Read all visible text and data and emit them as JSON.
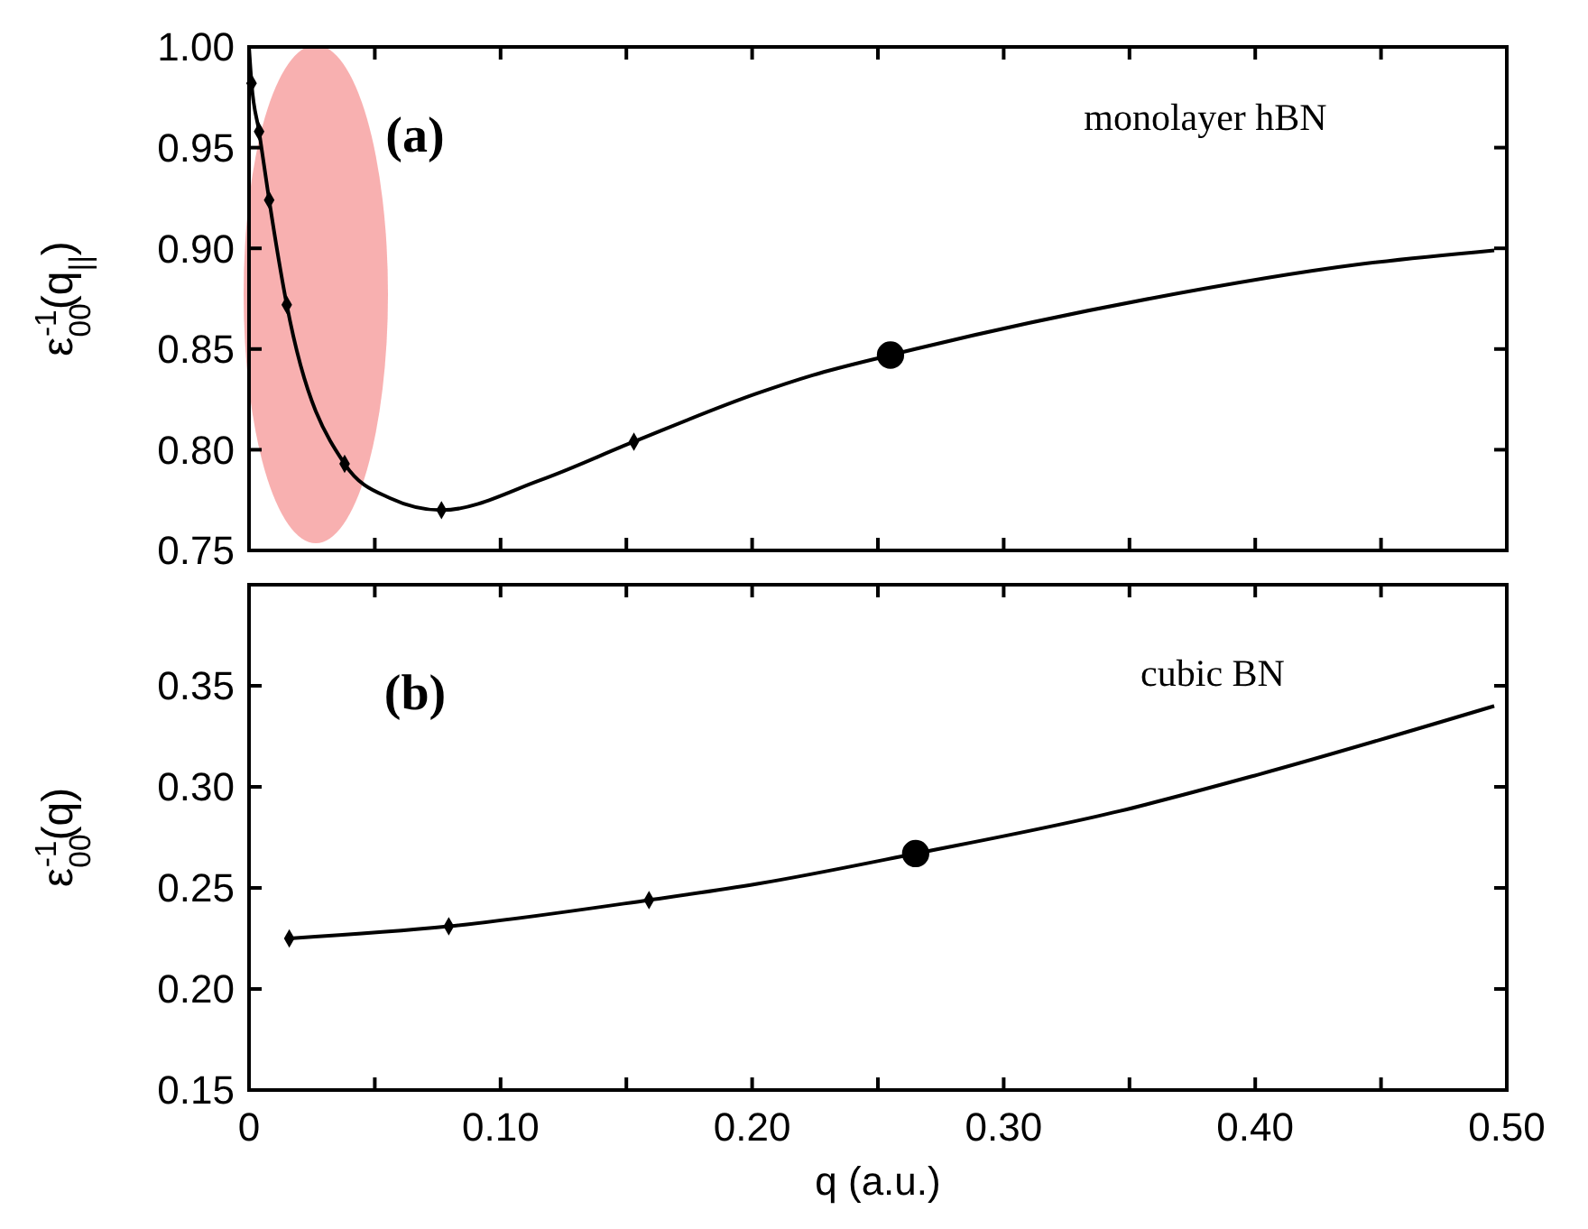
{
  "chart_data": [
    {
      "type": "line",
      "ylabel": "ε$_{00}$$^{-1}$(q$_{||}$)",
      "annotations": [
        "(a)",
        "monolayer hBN"
      ],
      "xlim": [
        0,
        0.5
      ],
      "ylim": [
        0.75,
        1.0
      ],
      "xticks": [
        0,
        0.05,
        0.1,
        0.15,
        0.2,
        0.25,
        0.3,
        0.35,
        0.4,
        0.45,
        0.5
      ],
      "yticks": [
        0.75,
        {
          "value": 0.8,
          "label": "0.80"
        },
        0.85,
        {
          "value": 0.9,
          "label": "0.90"
        },
        0.95,
        {
          "value": 1.0,
          "label": "1.00"
        }
      ],
      "tick_labels": "y",
      "marker": "none",
      "series": [
        {
          "type": "line",
          "color": "#000000",
          "x": [
            0,
            0.001,
            0.004,
            0.008,
            0.015,
            0.038,
            0.056,
            0.0765,
            0.116,
            0.153,
            0.202,
            0.224,
            0.255,
            0.358,
            0.441,
            0.495
          ],
          "values": [
            1.0,
            0.982,
            0.958,
            0.924,
            0.872,
            0.793,
            0.776,
            0.77,
            0.785,
            0.804,
            0.828,
            0.837,
            0.847,
            0.875,
            0.892,
            0.899
          ]
        },
        {
          "type": "scatter",
          "marker": "diamond",
          "color": "#000000",
          "x": [
            0.001,
            0.004,
            0.008,
            0.015,
            0.038,
            0.0765,
            0.153
          ],
          "values": [
            0.982,
            0.958,
            0.924,
            0.872,
            0.793,
            0.77,
            0.804
          ]
        },
        {
          "type": "scatter",
          "marker": "circle",
          "color": "#000000",
          "x": [
            0.255
          ],
          "values": [
            0.847
          ]
        }
      ]
    },
    {
      "type": "line",
      "ylabel": "ε$_{00}$$^{-1}$(q)",
      "xlabel": "q (a.u.)",
      "annotations": [
        "(b)",
        "cubic BN"
      ],
      "xlim": [
        0,
        0.5
      ],
      "ylim": [
        0.15,
        0.4
      ],
      "xticks": [
        0,
        {
          "value": 0.05,
          "label": null
        },
        {
          "value": 0.1,
          "label": "0.10"
        },
        {
          "value": 0.15,
          "label": null
        },
        {
          "value": 0.2,
          "label": "0.20"
        },
        {
          "value": 0.25,
          "label": null
        },
        {
          "value": 0.3,
          "label": "0.30"
        },
        {
          "value": 0.35,
          "label": null
        },
        {
          "value": 0.4,
          "label": "0.40"
        },
        {
          "value": 0.45,
          "label": null
        },
        {
          "value": 0.5,
          "label": "0.50"
        }
      ],
      "yticks": [
        0.15,
        {
          "value": 0.2,
          "label": "0.20"
        },
        0.25,
        {
          "value": 0.3,
          "label": "0.30"
        },
        0.35
      ],
      "marker": "none",
      "series": [
        {
          "type": "line",
          "color": "#000000",
          "x": [
            0.016,
            0.0794,
            0.159,
            0.202,
            0.265,
            0.346,
            0.401,
            0.495
          ],
          "values": [
            0.225,
            0.231,
            0.244,
            0.252,
            0.267,
            0.288,
            0.306,
            0.34
          ]
        },
        {
          "type": "scatter",
          "marker": "diamond",
          "color": "#000000",
          "x": [
            0.016,
            0.0794,
            0.159
          ],
          "values": [
            0.225,
            0.231,
            0.244
          ]
        },
        {
          "type": "scatter",
          "marker": "circle",
          "color": "#000000",
          "x": [
            0.265
          ],
          "values": [
            0.267
          ]
        }
      ]
    }
  ]
}
